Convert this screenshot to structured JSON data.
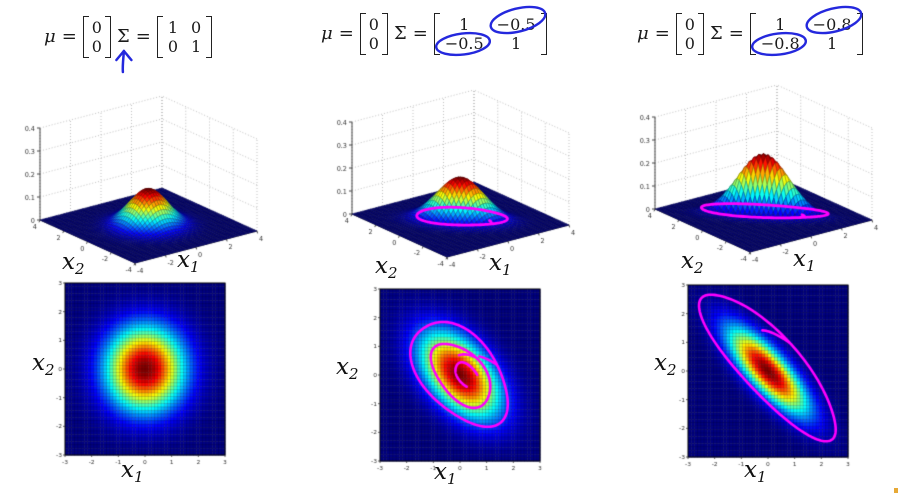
{
  "math": {
    "mu": "μ",
    "sigma": "Σ",
    "eq": "="
  },
  "colors": {
    "annotation_blue": "#2428dd",
    "contour_magenta": "#ff00ff",
    "axis_dark": "#444444",
    "grid_gray": "#b8b8b8",
    "tick_text": "#333333"
  },
  "axis_labels": {
    "x1_base": "x",
    "x1_sub": "1",
    "x2_base": "x",
    "x2_sub": "2"
  },
  "panels": [
    {
      "id": 1,
      "formula": {
        "mu": [
          "0",
          "0"
        ],
        "sigma": [
          [
            "1",
            "0"
          ],
          [
            "0",
            "1"
          ]
        ],
        "annotation": "hand-drawn-arrow-pointing-at-sigma"
      }
    },
    {
      "id": 2,
      "formula": {
        "mu": [
          "0",
          "0"
        ],
        "sigma": [
          [
            "1",
            "−0.5"
          ],
          [
            "−0.5",
            "1"
          ]
        ],
        "annotation": "hand-drawn-circles-on-off-diagonal-entries"
      }
    },
    {
      "id": 3,
      "formula": {
        "mu": [
          "0",
          "0"
        ],
        "sigma": [
          [
            "1",
            "−0.8"
          ],
          [
            "−0.8",
            "1"
          ]
        ],
        "annotation": "hand-drawn-circles-on-off-diagonal-entries"
      }
    }
  ],
  "chart_data": [
    {
      "type": "surface",
      "panel": 1,
      "mu": [
        0,
        0
      ],
      "sigma": [
        [
          1,
          0
        ],
        [
          0,
          1
        ]
      ],
      "rho": 0,
      "peak_density": 0.159,
      "xlabel": "x1",
      "ylabel": "x2",
      "xlim": [
        -4,
        4
      ],
      "ylim": [
        -4,
        4
      ],
      "zlim": [
        0,
        0.4
      ],
      "xticks": [
        -4,
        -2,
        0,
        2,
        4
      ],
      "yticks": [
        -4,
        -2,
        0,
        2,
        4
      ],
      "zticks": [
        0,
        0.1,
        0.2,
        0.3,
        0.4
      ],
      "colormap": "jet",
      "grid": "dotted",
      "contour_ellipse": null
    },
    {
      "type": "surface",
      "panel": 2,
      "mu": [
        0,
        0
      ],
      "sigma": [
        [
          1,
          -0.5
        ],
        [
          -0.5,
          1
        ]
      ],
      "rho": -0.5,
      "peak_density": 0.184,
      "xlabel": "x1",
      "ylabel": "x2",
      "xlim": [
        -4,
        4
      ],
      "ylim": [
        -4,
        4
      ],
      "zlim": [
        0,
        0.4
      ],
      "xticks": [
        -4,
        -2,
        0,
        2,
        4
      ],
      "yticks": [
        -4,
        -2,
        0,
        2,
        4
      ],
      "zticks": [
        0,
        0.1,
        0.2,
        0.3,
        0.4
      ],
      "colormap": "jet",
      "grid": "dotted",
      "contour_ellipse": {
        "semi_major": 2.35,
        "semi_minor": 1.3,
        "cx": 0,
        "cy": 0,
        "orientation": "along y = -x",
        "t0": 5.5,
        "frac": 1.06,
        "seed": 2
      }
    },
    {
      "type": "surface",
      "panel": 3,
      "mu": [
        0,
        0
      ],
      "sigma": [
        [
          1,
          -0.8
        ],
        [
          -0.8,
          1
        ]
      ],
      "rho": -0.8,
      "peak_density": 0.265,
      "xlabel": "x1",
      "ylabel": "x2",
      "xlim": [
        -4,
        4
      ],
      "ylim": [
        -4,
        4
      ],
      "zlim": [
        0,
        0.4
      ],
      "xticks": [
        -4,
        -2,
        0,
        2,
        4
      ],
      "yticks": [
        -4,
        -2,
        0,
        2,
        4
      ],
      "zticks": [
        0,
        0.1,
        0.2,
        0.3,
        0.4
      ],
      "colormap": "jet",
      "grid": "dotted",
      "contour_ellipse": {
        "semi_major": 3.3,
        "semi_minor": 0.95,
        "cx": 0,
        "cy": 0.1,
        "orientation": "along y = -x",
        "t0": 5.5,
        "frac": 1.06,
        "seed": 1
      }
    },
    {
      "type": "heatmap",
      "panel": 1,
      "mu": [
        0,
        0
      ],
      "sigma": [
        [
          1,
          0
        ],
        [
          0,
          1
        ]
      ],
      "rho": 0,
      "xlabel": "x1",
      "ylabel": "x2",
      "xlim": [
        -3,
        3
      ],
      "ylim": [
        -3,
        3
      ],
      "xticks": [
        -3,
        -2,
        -1,
        0,
        1,
        2,
        3
      ],
      "yticks": [
        -3,
        -2,
        -1,
        0,
        1,
        2,
        3
      ],
      "colormap": "jet",
      "contour_ellipses": []
    },
    {
      "type": "heatmap",
      "panel": 2,
      "mu": [
        0,
        0
      ],
      "sigma": [
        [
          1,
          -0.5
        ],
        [
          -0.5,
          1
        ]
      ],
      "rho": -0.5,
      "xlabel": "x1",
      "ylabel": "x2",
      "xlim": [
        -3,
        3
      ],
      "ylim": [
        -3,
        3
      ],
      "xticks": [
        -3,
        -2,
        -1,
        0,
        1,
        2,
        3
      ],
      "yticks": [
        -3,
        -2,
        -1,
        0,
        1,
        2,
        3
      ],
      "colormap": "jet",
      "contour_ellipses": [
        {
          "semi_major": 2.2,
          "semi_minor": 1.32,
          "cx": 0,
          "cy": 0.05,
          "t0": 1.2,
          "frac": 1.05,
          "seed": 2
        },
        {
          "semi_major": 1.35,
          "semi_minor": 0.8,
          "cx": 0.05,
          "cy": 0,
          "t0": 1.6,
          "frac": 1.1,
          "seed": 4
        },
        {
          "semi_major": 0.6,
          "semi_minor": 0.32,
          "cx": 0.3,
          "cy": -0.05,
          "t0": 1.2,
          "frac": 0.62,
          "seed": 1
        }
      ]
    },
    {
      "type": "heatmap",
      "panel": 3,
      "mu": [
        0,
        0
      ],
      "sigma": [
        [
          1,
          -0.8
        ],
        [
          -0.8,
          1
        ]
      ],
      "rho": -0.8,
      "xlabel": "x1",
      "ylabel": "x2",
      "xlim": [
        -3,
        3
      ],
      "ylim": [
        -3,
        3
      ],
      "xticks": [
        -3,
        -2,
        -1,
        0,
        1,
        2,
        3
      ],
      "yticks": [
        -3,
        -2,
        -1,
        0,
        1,
        2,
        3
      ],
      "colormap": "jet",
      "contour_ellipses": [
        {
          "semi_major": 3.45,
          "semi_minor": 1.05,
          "cx": 0.05,
          "cy": 0.2,
          "t0": 1.57,
          "frac": 1.07,
          "seed": 3
        }
      ]
    }
  ]
}
